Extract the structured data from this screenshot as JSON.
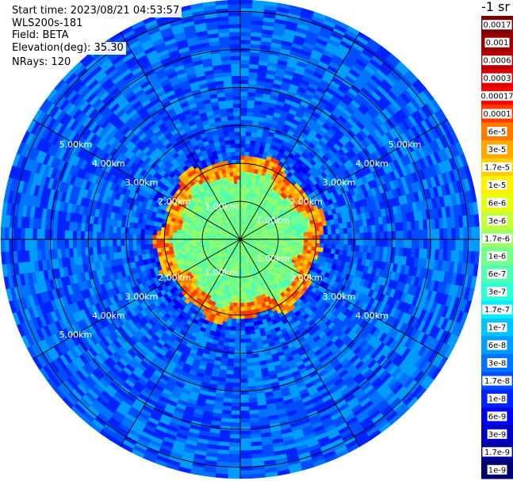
{
  "header": {
    "start_time": "Start time: 2023/08/21 04:53:57",
    "device": "WLS200s-181",
    "field": "Field: BETA",
    "elevation": "Elevation(deg): 35.30",
    "nrays": "NRays: 120",
    "unit": "-1 sr"
  },
  "chart_data": {
    "type": "heatmap",
    "projection": "polar",
    "field": "BETA",
    "nrays": 120,
    "elevation_deg": 35.3,
    "max_range_km": 6.3,
    "range_rings_km": [
      1,
      2,
      3,
      4,
      5,
      6
    ],
    "radial_lines_deg": [
      0,
      30,
      60,
      90,
      120,
      150,
      180,
      210,
      240,
      270,
      300,
      330
    ],
    "ring_labels": [
      {
        "text": "1.00km",
        "range_km": 1,
        "az_deg": 330
      },
      {
        "text": "1.00km",
        "range_km": 1,
        "az_deg": 60
      },
      {
        "text": "1.00km",
        "range_km": 1,
        "az_deg": 120
      },
      {
        "text": "1.00km",
        "range_km": 1,
        "az_deg": 210
      },
      {
        "text": "2.00km",
        "range_km": 2,
        "az_deg": 300
      },
      {
        "text": "2.00km",
        "range_km": 2,
        "az_deg": 60
      },
      {
        "text": "2.00km",
        "range_km": 2,
        "az_deg": 120
      },
      {
        "text": "2.00km",
        "range_km": 2,
        "az_deg": 240
      },
      {
        "text": "3.00km",
        "range_km": 3,
        "az_deg": 300
      },
      {
        "text": "3.00km",
        "range_km": 3,
        "az_deg": 60
      },
      {
        "text": "3.00km",
        "range_km": 3,
        "az_deg": 120
      },
      {
        "text": "3.00km",
        "range_km": 3,
        "az_deg": 240
      },
      {
        "text": "4.00km",
        "range_km": 4,
        "az_deg": 300
      },
      {
        "text": "4.00km",
        "range_km": 4,
        "az_deg": 60
      },
      {
        "text": "4.00km",
        "range_km": 4,
        "az_deg": 120
      },
      {
        "text": "4.00km",
        "range_km": 4,
        "az_deg": 240
      },
      {
        "text": "5.00km",
        "range_km": 5,
        "az_deg": 300
      },
      {
        "text": "5.00km",
        "range_km": 5,
        "az_deg": 60
      },
      {
        "text": "5.00km",
        "range_km": 5,
        "az_deg": 240
      }
    ],
    "pattern": {
      "core_range_km": [
        0,
        1.8
      ],
      "core_level": 12,
      "ring_range_km": [
        1.8,
        2.2
      ],
      "ring_level": 20,
      "outer_level": 6
    },
    "colorbar": {
      "scale": "log",
      "unit": "-1 sr",
      "labels": [
        "0.0017",
        "0.001",
        "0.0006",
        "0.0003",
        "0.00017",
        "0.0001",
        "6e-5",
        "3e-5",
        "1.7e-5",
        "1e-5",
        "6e-6",
        "3e-6",
        "1.7e-6",
        "1e-6",
        "6e-7",
        "3e-7",
        "1.7e-7",
        "1e-7",
        "6e-8",
        "3e-8",
        "1.7e-8",
        "1e-8",
        "6e-9",
        "3e-9",
        "1.7e-9",
        "1e-9"
      ],
      "colors": [
        "#7a0000",
        "#9a0000",
        "#b80000",
        "#dd0000",
        "#ff0000",
        "#ff3c00",
        "#ff7800",
        "#ffa800",
        "#ffd000",
        "#fff200",
        "#e8ff10",
        "#c4ff3c",
        "#9cff62",
        "#76ff8a",
        "#50ffb0",
        "#2effd8",
        "#10eaff",
        "#00c4ff",
        "#009cff",
        "#0074ff",
        "#004cff",
        "#0024ff",
        "#0000f2",
        "#0000c4",
        "#00009a",
        "#00006e"
      ]
    }
  }
}
